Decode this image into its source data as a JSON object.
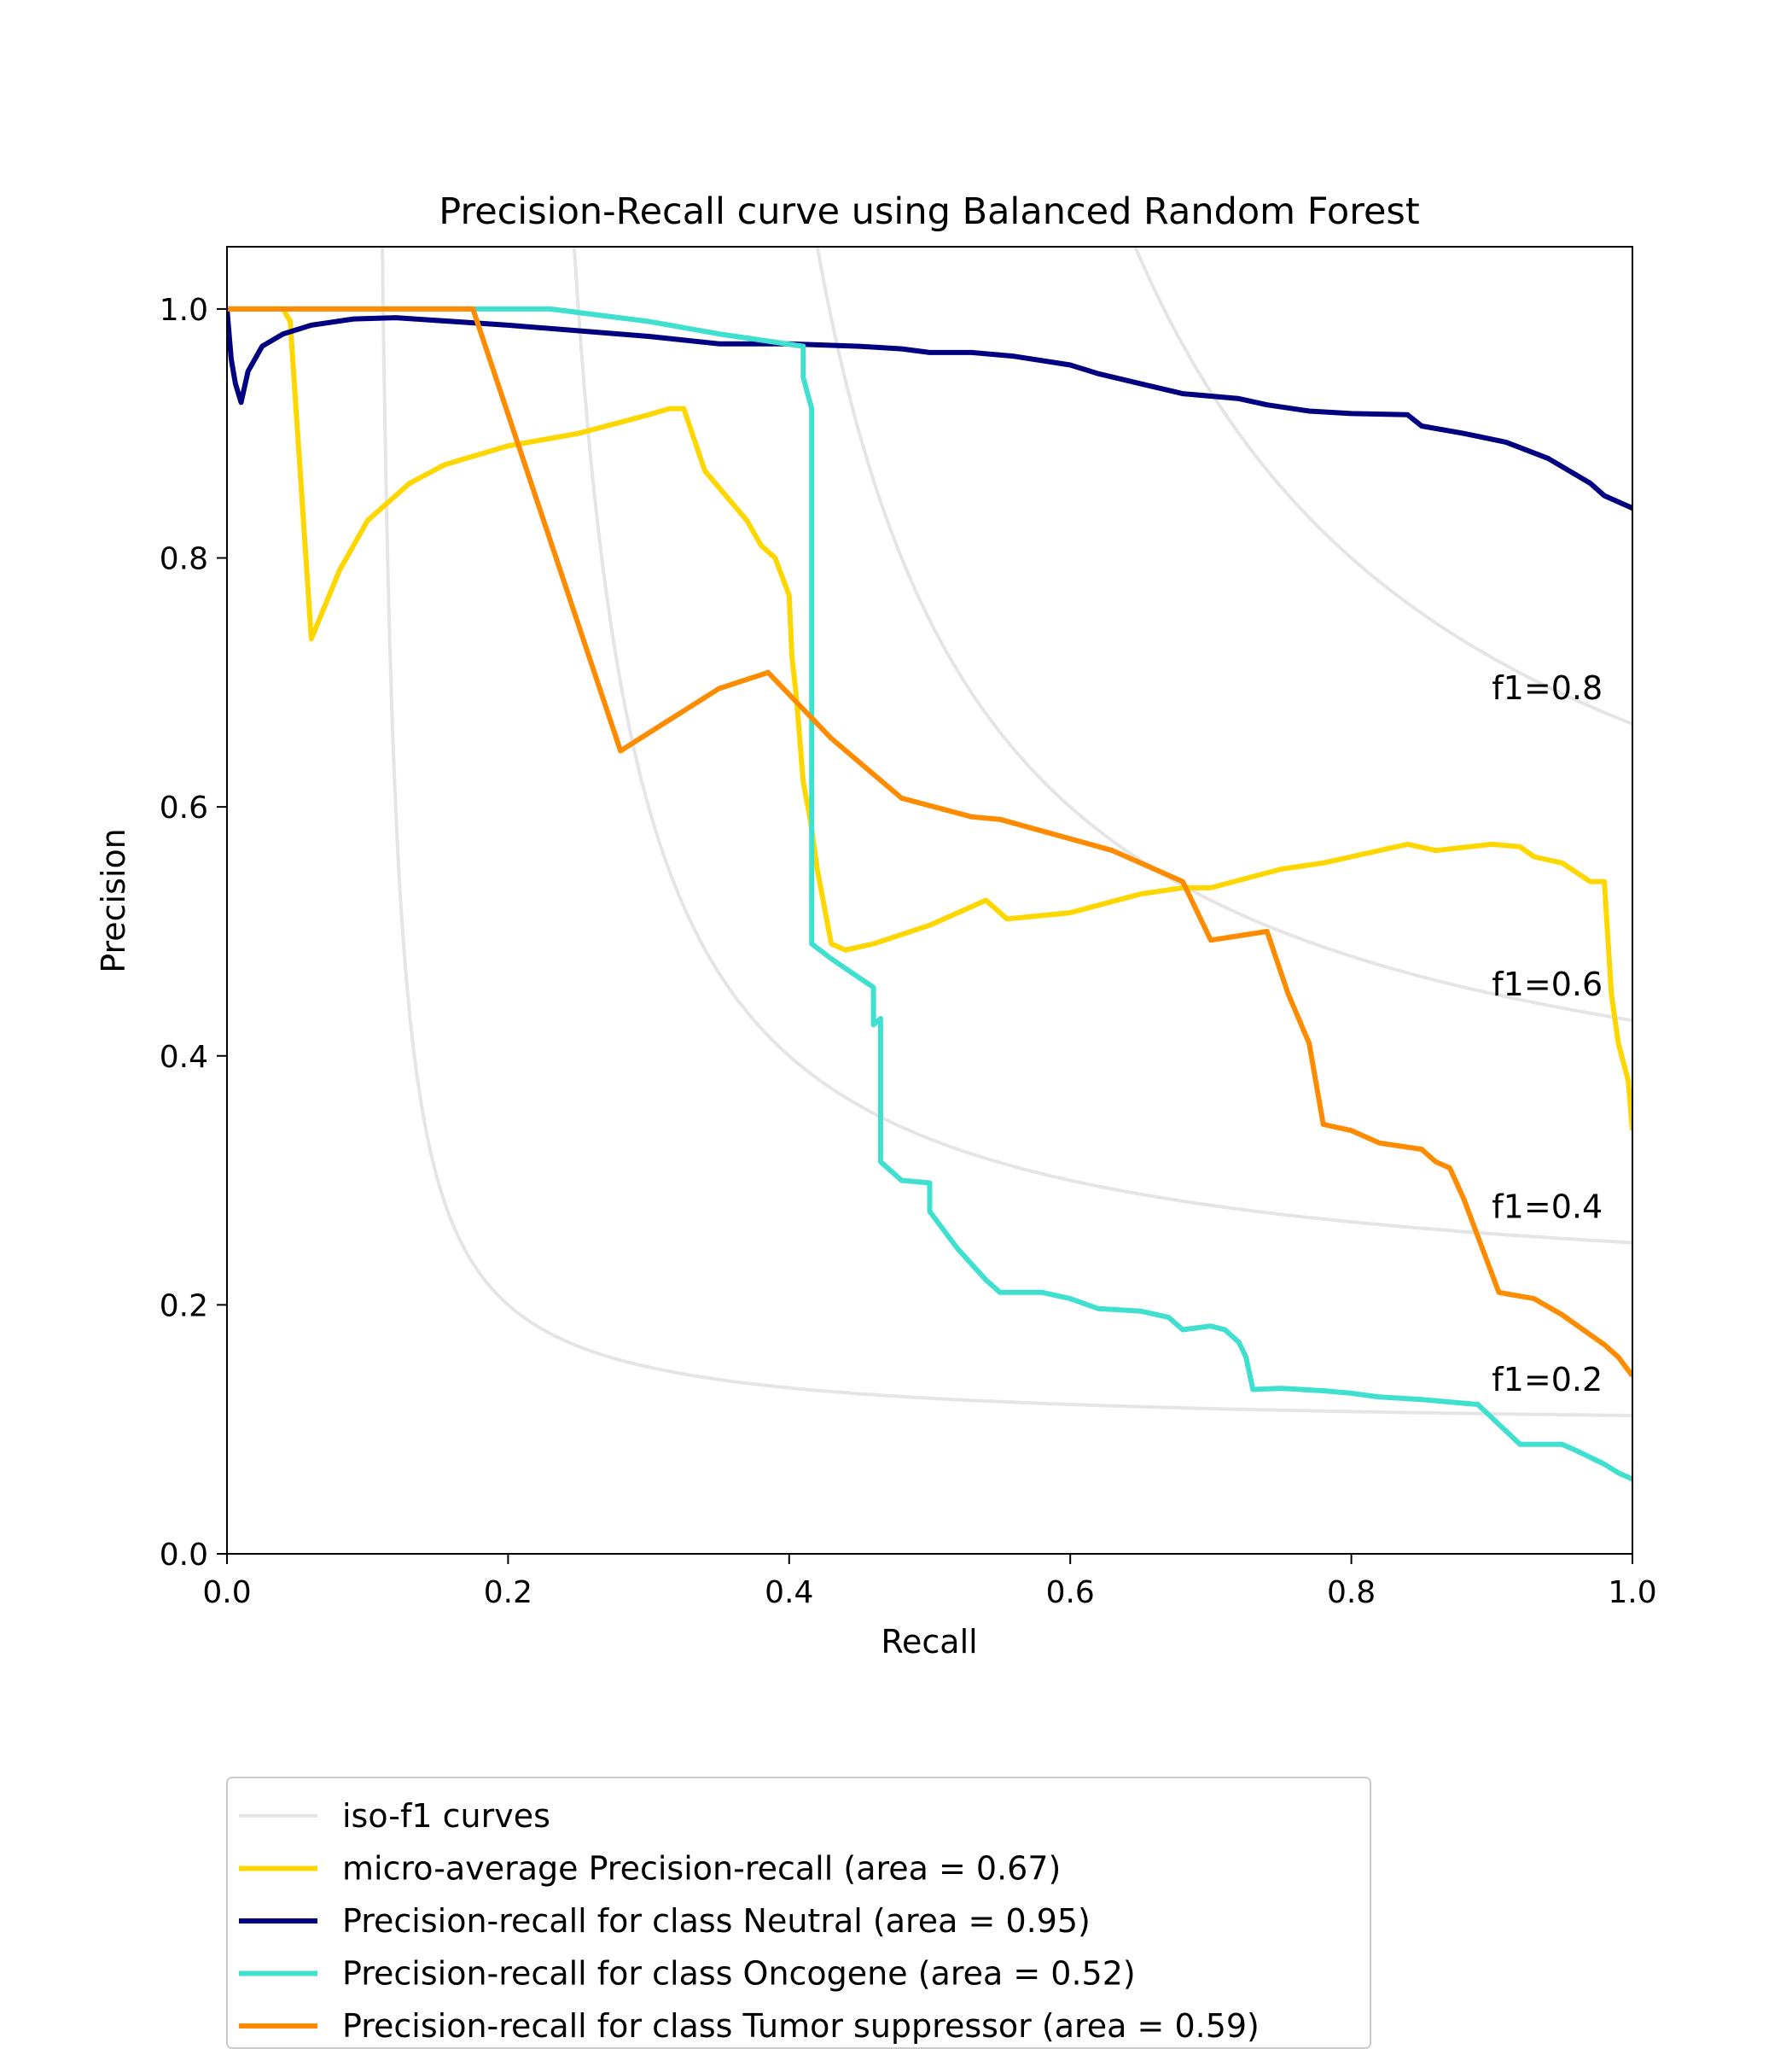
{
  "chart_data": {
    "type": "line",
    "title": "Precision-Recall curve using Balanced Random Forest",
    "xlabel": "Recall",
    "ylabel": "Precision",
    "xlim": [
      0.0,
      1.0
    ],
    "ylim": [
      0.0,
      1.05
    ],
    "xticks": [
      "0.0",
      "0.2",
      "0.4",
      "0.6",
      "0.8",
      "1.0"
    ],
    "yticks": [
      "0.0",
      "0.2",
      "0.4",
      "0.6",
      "0.8",
      "1.0"
    ],
    "grid": false,
    "legend_position": "below plot",
    "iso_f1": {
      "legend_label": "iso-f1 curves",
      "color": "#e5e5e5",
      "values": [
        0.2,
        0.4,
        0.6,
        0.8
      ],
      "labels": [
        "f1=0.2",
        "f1=0.4",
        "f1=0.6",
        "f1=0.8"
      ]
    },
    "series": [
      {
        "name": "micro-average Precision-recall (area = 0.67)",
        "color": "#ffd700",
        "points": [
          [
            0.0,
            1.0
          ],
          [
            0.04,
            1.0
          ],
          [
            0.045,
            0.99
          ],
          [
            0.06,
            0.735
          ],
          [
            0.08,
            0.79
          ],
          [
            0.1,
            0.83
          ],
          [
            0.13,
            0.86
          ],
          [
            0.155,
            0.875
          ],
          [
            0.2,
            0.89
          ],
          [
            0.25,
            0.9
          ],
          [
            0.3,
            0.915
          ],
          [
            0.315,
            0.92
          ],
          [
            0.325,
            0.92
          ],
          [
            0.34,
            0.87
          ],
          [
            0.37,
            0.83
          ],
          [
            0.38,
            0.81
          ],
          [
            0.39,
            0.8
          ],
          [
            0.4,
            0.77
          ],
          [
            0.402,
            0.72
          ],
          [
            0.405,
            0.69
          ],
          [
            0.41,
            0.62
          ],
          [
            0.415,
            0.59
          ],
          [
            0.42,
            0.55
          ],
          [
            0.43,
            0.49
          ],
          [
            0.44,
            0.485
          ],
          [
            0.46,
            0.49
          ],
          [
            0.5,
            0.505
          ],
          [
            0.54,
            0.525
          ],
          [
            0.555,
            0.51
          ],
          [
            0.6,
            0.515
          ],
          [
            0.65,
            0.53
          ],
          [
            0.68,
            0.535
          ],
          [
            0.7,
            0.535
          ],
          [
            0.75,
            0.55
          ],
          [
            0.78,
            0.555
          ],
          [
            0.82,
            0.565
          ],
          [
            0.84,
            0.57
          ],
          [
            0.86,
            0.565
          ],
          [
            0.9,
            0.57
          ],
          [
            0.92,
            0.568
          ],
          [
            0.93,
            0.56
          ],
          [
            0.95,
            0.555
          ],
          [
            0.97,
            0.54
          ],
          [
            0.98,
            0.54
          ],
          [
            0.985,
            0.45
          ],
          [
            0.99,
            0.41
          ],
          [
            0.997,
            0.38
          ],
          [
            1.0,
            0.34
          ]
        ]
      },
      {
        "name": "Precision-recall for class Neutral (area = 0.95)",
        "color": "#000080",
        "points": [
          [
            0.0,
            1.0
          ],
          [
            0.003,
            0.96
          ],
          [
            0.006,
            0.94
          ],
          [
            0.01,
            0.925
          ],
          [
            0.015,
            0.95
          ],
          [
            0.025,
            0.97
          ],
          [
            0.04,
            0.98
          ],
          [
            0.06,
            0.987
          ],
          [
            0.09,
            0.992
          ],
          [
            0.12,
            0.993
          ],
          [
            0.2,
            0.987
          ],
          [
            0.3,
            0.978
          ],
          [
            0.35,
            0.972
          ],
          [
            0.4,
            0.972
          ],
          [
            0.45,
            0.97
          ],
          [
            0.48,
            0.968
          ],
          [
            0.5,
            0.965
          ],
          [
            0.53,
            0.965
          ],
          [
            0.56,
            0.962
          ],
          [
            0.6,
            0.955
          ],
          [
            0.62,
            0.948
          ],
          [
            0.65,
            0.94
          ],
          [
            0.68,
            0.932
          ],
          [
            0.72,
            0.928
          ],
          [
            0.74,
            0.923
          ],
          [
            0.77,
            0.918
          ],
          [
            0.8,
            0.916
          ],
          [
            0.84,
            0.915
          ],
          [
            0.85,
            0.906
          ],
          [
            0.88,
            0.9
          ],
          [
            0.91,
            0.893
          ],
          [
            0.94,
            0.88
          ],
          [
            0.97,
            0.86
          ],
          [
            0.98,
            0.85
          ],
          [
            1.0,
            0.84
          ]
        ]
      },
      {
        "name": "Precision-recall for class Oncogene (area = 0.52)",
        "color": "#40e0d0",
        "points": [
          [
            0.0,
            1.0
          ],
          [
            0.23,
            1.0
          ],
          [
            0.3,
            0.99
          ],
          [
            0.35,
            0.98
          ],
          [
            0.41,
            0.97
          ],
          [
            0.41,
            0.945
          ],
          [
            0.416,
            0.92
          ],
          [
            0.416,
            0.49
          ],
          [
            0.43,
            0.478
          ],
          [
            0.46,
            0.455
          ],
          [
            0.46,
            0.425
          ],
          [
            0.465,
            0.43
          ],
          [
            0.465,
            0.315
          ],
          [
            0.48,
            0.3
          ],
          [
            0.5,
            0.298
          ],
          [
            0.5,
            0.275
          ],
          [
            0.52,
            0.245
          ],
          [
            0.54,
            0.22
          ],
          [
            0.55,
            0.21
          ],
          [
            0.58,
            0.21
          ],
          [
            0.6,
            0.205
          ],
          [
            0.62,
            0.197
          ],
          [
            0.65,
            0.195
          ],
          [
            0.67,
            0.19
          ],
          [
            0.68,
            0.18
          ],
          [
            0.7,
            0.183
          ],
          [
            0.71,
            0.18
          ],
          [
            0.72,
            0.17
          ],
          [
            0.725,
            0.158
          ],
          [
            0.73,
            0.132
          ],
          [
            0.75,
            0.133
          ],
          [
            0.78,
            0.131
          ],
          [
            0.8,
            0.129
          ],
          [
            0.82,
            0.126
          ],
          [
            0.85,
            0.124
          ],
          [
            0.88,
            0.121
          ],
          [
            0.89,
            0.12
          ],
          [
            0.92,
            0.088
          ],
          [
            0.95,
            0.088
          ],
          [
            0.96,
            0.083
          ],
          [
            0.98,
            0.072
          ],
          [
            0.99,
            0.065
          ],
          [
            1.0,
            0.06
          ]
        ]
      },
      {
        "name": "Precision-recall for class Tumor suppressor (area = 0.59)",
        "color": "#ff8c00",
        "points": [
          [
            0.0,
            1.0
          ],
          [
            0.175,
            1.0
          ],
          [
            0.28,
            0.645
          ],
          [
            0.35,
            0.695
          ],
          [
            0.385,
            0.708
          ],
          [
            0.43,
            0.655
          ],
          [
            0.48,
            0.607
          ],
          [
            0.53,
            0.592
          ],
          [
            0.55,
            0.59
          ],
          [
            0.63,
            0.565
          ],
          [
            0.68,
            0.54
          ],
          [
            0.7,
            0.493
          ],
          [
            0.74,
            0.5
          ],
          [
            0.755,
            0.45
          ],
          [
            0.77,
            0.41
          ],
          [
            0.78,
            0.345
          ],
          [
            0.8,
            0.34
          ],
          [
            0.82,
            0.33
          ],
          [
            0.85,
            0.325
          ],
          [
            0.86,
            0.315
          ],
          [
            0.87,
            0.31
          ],
          [
            0.88,
            0.285
          ],
          [
            0.905,
            0.21
          ],
          [
            0.93,
            0.205
          ],
          [
            0.95,
            0.192
          ],
          [
            0.97,
            0.176
          ],
          [
            0.98,
            0.168
          ],
          [
            0.99,
            0.158
          ],
          [
            1.0,
            0.143
          ]
        ]
      }
    ]
  }
}
